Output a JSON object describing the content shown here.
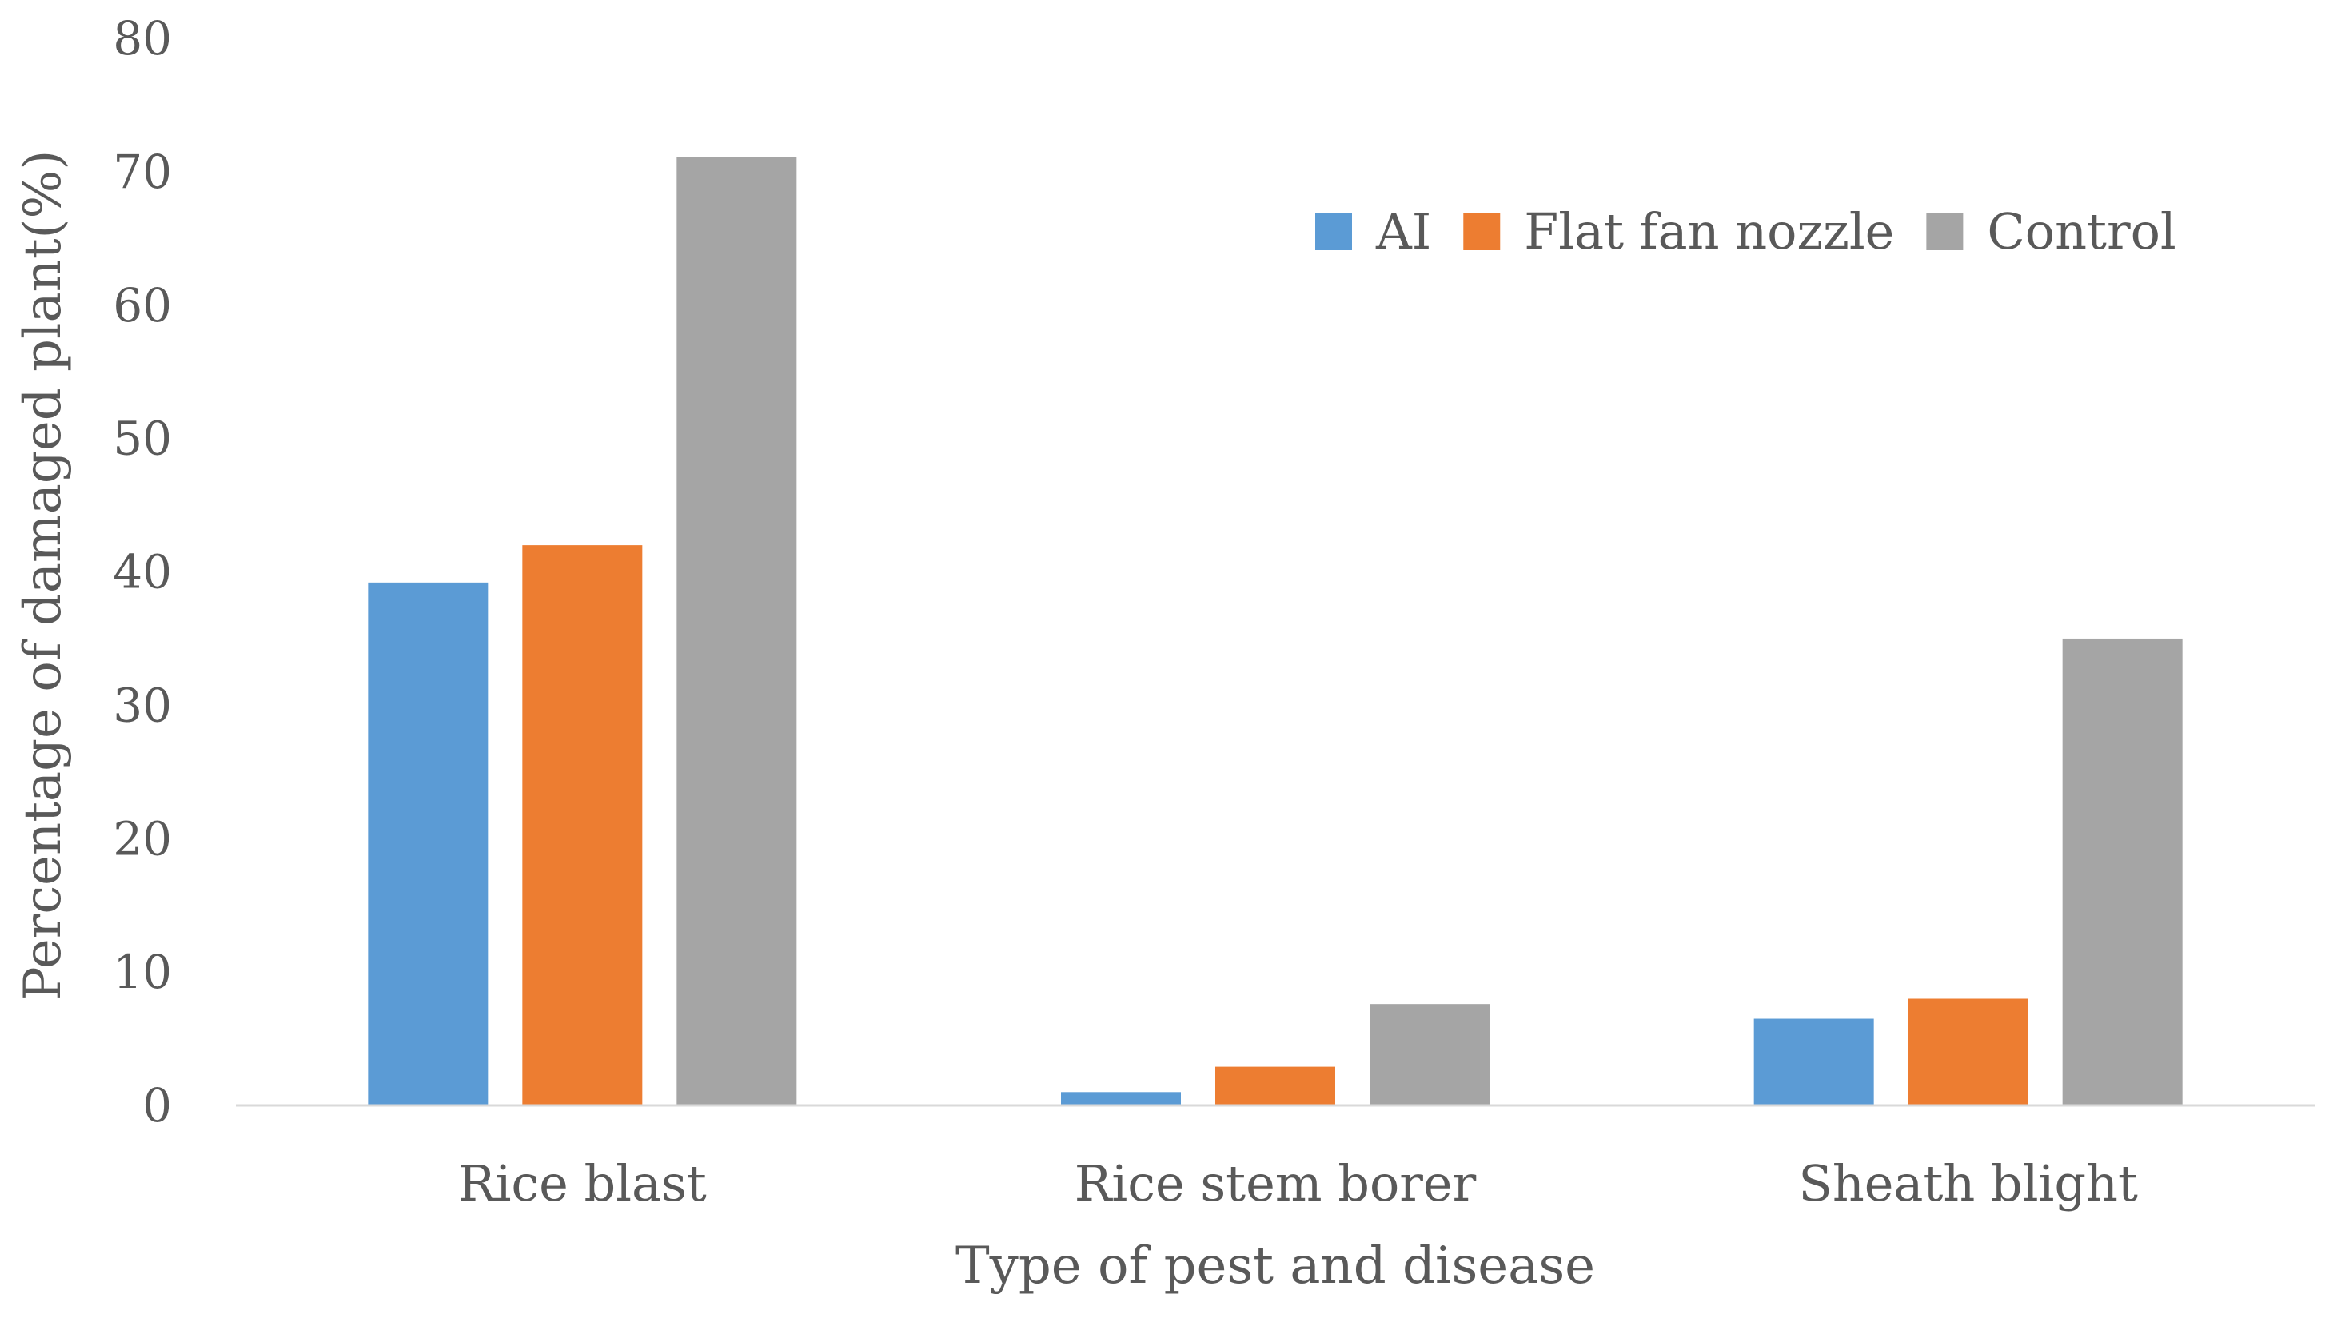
{
  "chart_data": {
    "type": "bar",
    "title": "",
    "xlabel": "Type of pest and disease",
    "ylabel": "Percentage of damaged plant(%)",
    "ylim": [
      0,
      80
    ],
    "yticks": [
      0,
      10,
      20,
      30,
      40,
      50,
      60,
      70,
      80
    ],
    "categories": [
      "Rice blast",
      "Rice stem borer",
      "Sheath blight"
    ],
    "series": [
      {
        "name": "AI",
        "color": "#5B9BD5",
        "values": [
          39.2,
          1.0,
          6.5
        ]
      },
      {
        "name": "Flat fan nozzle",
        "color": "#ED7D31",
        "values": [
          42.0,
          2.9,
          8.0
        ]
      },
      {
        "name": "Control",
        "color": "#A5A5A5",
        "values": [
          71.1,
          7.6,
          35.0
        ]
      }
    ],
    "grid": false,
    "legend_position": "top-right"
  }
}
